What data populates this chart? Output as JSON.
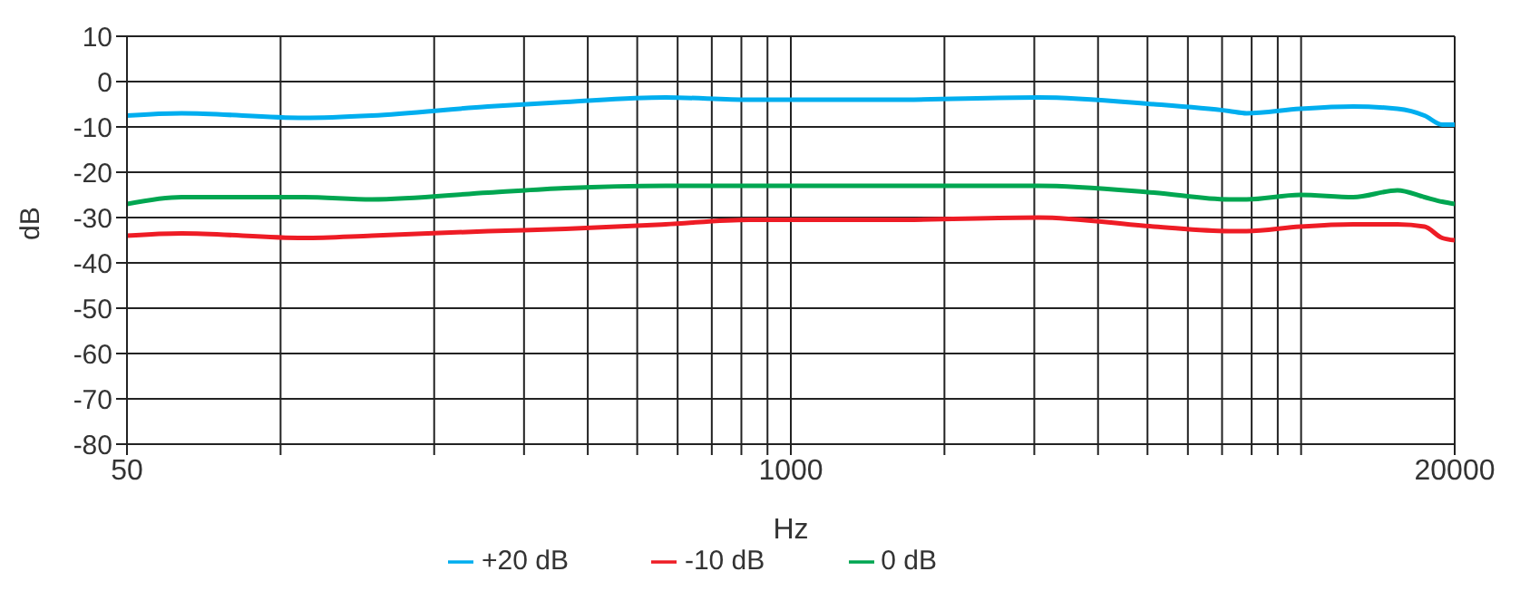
{
  "chart_data": {
    "type": "line",
    "xlabel": "Hz",
    "ylabel": "dB",
    "log": "x",
    "x": [
      50,
      64,
      111,
      151,
      255,
      362,
      568,
      828,
      1574,
      3060,
      5150,
      7220,
      7820,
      9950,
      12650,
      15450,
      17450,
      18900,
      20000
    ],
    "series": [
      {
        "name": "-10 dB",
        "color": "#ee1c25",
        "values": [
          -34,
          -33.5,
          -34.5,
          -34,
          -33,
          -32.5,
          -31.5,
          -30.5,
          -30.5,
          -30,
          -32,
          -33,
          -33,
          -32,
          -31.5,
          -31.5,
          -32,
          -34.5,
          -35
        ]
      },
      {
        "name": "0 dB",
        "color": "#00a651",
        "values": [
          -27,
          -25.5,
          -25.5,
          -26,
          -24.5,
          -23.5,
          -23,
          -23,
          -23,
          -23,
          -24.5,
          -26,
          -26,
          -25,
          -25.5,
          -24,
          -25.5,
          -26.5,
          -27
        ]
      },
      {
        "name": "+20 dB",
        "color": "#00aeef",
        "values": [
          -7.5,
          -7,
          -8,
          -7.5,
          -5.5,
          -4.5,
          -3.5,
          -4,
          -4,
          -3.5,
          -5,
          -6.5,
          -7,
          -6,
          -5.5,
          -6,
          -7.5,
          -9.5,
          -9.5
        ]
      }
    ],
    "xlim": [
      50,
      20000
    ],
    "xticks": [
      50,
      {
        "value": 100,
        "label": null
      },
      {
        "value": 200,
        "label": null
      },
      {
        "value": 300,
        "label": null
      },
      {
        "value": 400,
        "label": null
      },
      {
        "value": 500,
        "label": null
      },
      {
        "value": 600,
        "label": null
      },
      {
        "value": 700,
        "label": null
      },
      {
        "value": 800,
        "label": null
      },
      {
        "value": 900,
        "label": null
      },
      1000,
      {
        "value": 2000,
        "label": null
      },
      {
        "value": 3000,
        "label": null
      },
      {
        "value": 4000,
        "label": null
      },
      {
        "value": 5000,
        "label": null
      },
      {
        "value": 6000,
        "label": null
      },
      {
        "value": 7000,
        "label": null
      },
      {
        "value": 8000,
        "label": null
      },
      {
        "value": 9000,
        "label": null
      },
      {
        "value": 10000,
        "label": null
      },
      20000
    ],
    "ylim": [
      -80,
      10
    ],
    "yticks": [
      -80,
      -70,
      -60,
      -50,
      -40,
      -30,
      -20,
      -10,
      0,
      10
    ],
    "grid": true,
    "legend": "bottom",
    "marker": "none",
    "line_style": "solid"
  }
}
